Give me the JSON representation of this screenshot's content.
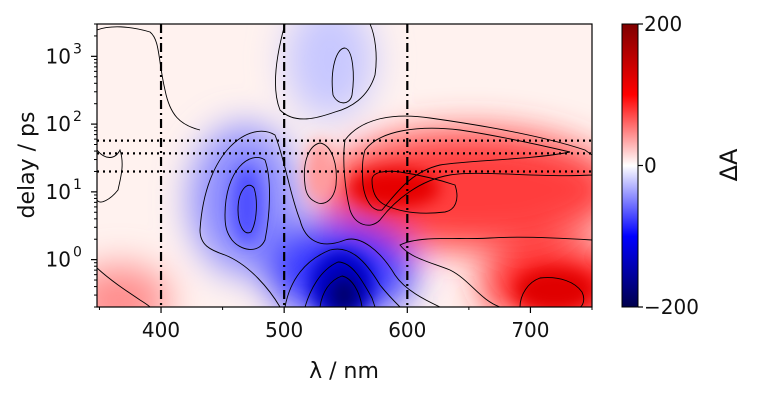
{
  "chart_data": {
    "type": "heatmap",
    "xlabel": "λ / nm",
    "ylabel": "delay / ps",
    "colorbar_label": "ΔA",
    "xlim": [
      348,
      750
    ],
    "ylim": [
      0.2,
      3000
    ],
    "yscale": "log",
    "x_ticks": [
      {
        "value": 400,
        "label": "400"
      },
      {
        "value": 500,
        "label": "500"
      },
      {
        "value": 600,
        "label": "600"
      },
      {
        "value": 700,
        "label": "700"
      }
    ],
    "y_ticks": [
      {
        "value": 1,
        "base": "10",
        "exp": "0"
      },
      {
        "value": 10,
        "base": "10",
        "exp": "1"
      },
      {
        "value": 100,
        "base": "10",
        "exp": "2"
      },
      {
        "value": 1000,
        "base": "10",
        "exp": "3"
      }
    ],
    "colorbar": {
      "range": [
        -200,
        200
      ],
      "ticks": [
        {
          "value": 200,
          "label": "200"
        },
        {
          "value": 0,
          "label": "0"
        },
        {
          "value": -200,
          "label": "−200"
        }
      ],
      "colormap": "seismic",
      "colors": {
        "low": "#00004c",
        "mid": "#ffffff",
        "high": "#7f0000"
      }
    },
    "vertical_lines": [
      400,
      500,
      600
    ],
    "horizontal_lines": [
      20,
      37,
      57
    ],
    "features": [
      {
        "kind": "bleach",
        "x": 548,
        "y": 0.35,
        "value": -200
      },
      {
        "kind": "bleach",
        "x": 470,
        "y": 6,
        "value": -110
      },
      {
        "kind": "bleach",
        "x": 545,
        "y": 1500,
        "value": -60
      },
      {
        "kind": "absorption",
        "x": 585,
        "y": 10,
        "value": 150
      },
      {
        "kind": "absorption",
        "x": 700,
        "y": 0.4,
        "value": 140
      },
      {
        "kind": "absorption",
        "x": 525,
        "y": 12,
        "value": 40
      },
      {
        "kind": "absorption",
        "x": 360,
        "y": 0.3,
        "value": 60
      }
    ]
  }
}
